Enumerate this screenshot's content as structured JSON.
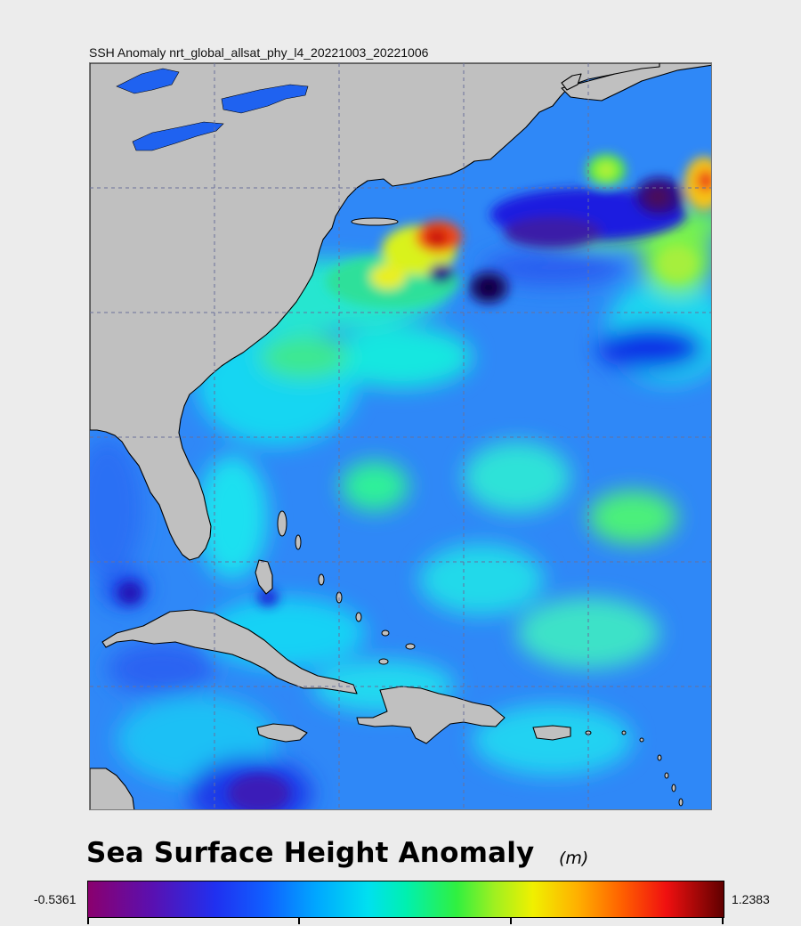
{
  "map": {
    "title": "SSH Anomaly nrt_global_allsat_phy_l4_20221003_20221006",
    "land_color": "#c0c0c0",
    "lake_color": "#1f62f0",
    "grid_line_color": "#6a6f9a"
  },
  "legend": {
    "title": "Sea Surface Height Anomaly",
    "units": "(m)",
    "min_label": "-0.5361",
    "max_label": "1.2383",
    "colormap": "rainbow (purple-blue-cyan-green-yellow-red-dark red)"
  }
}
